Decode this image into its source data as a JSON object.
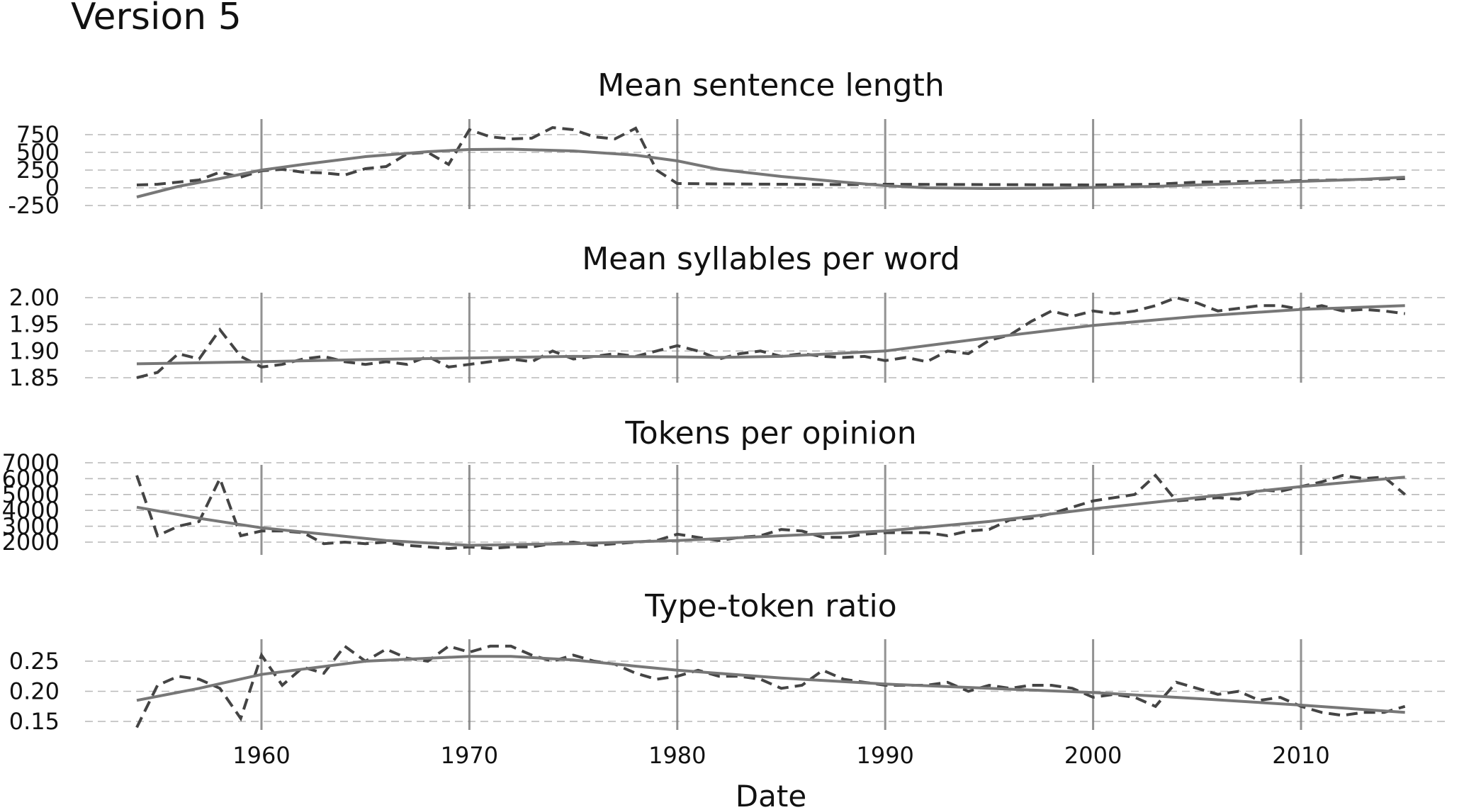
{
  "page": {
    "title": "Version 5"
  },
  "chart_data": {
    "type": "line",
    "xlabel": "Date",
    "xlim": [
      1952.5,
      2017.5
    ],
    "x_ticks": [
      1960,
      1970,
      1980,
      1990,
      2000,
      2010
    ],
    "vertical_lines": [
      1960,
      1970,
      1980,
      1990,
      2000,
      2010
    ],
    "grid": "horizontal dashed",
    "panels": [
      {
        "title": "Mean sentence length",
        "ylim": [
          -290,
          830
        ],
        "y_ticks": [
          -250,
          0,
          250,
          500,
          750
        ],
        "series": [
          {
            "style": "dashed",
            "x": [
              1954,
              1955,
              1956,
              1957,
              1958,
              1959,
              1960,
              1961,
              1962,
              1963,
              1964,
              1965,
              1966,
              1967,
              1968,
              1969,
              1970,
              1971,
              1972,
              1973,
              1974,
              1975,
              1976,
              1977,
              1978,
              1979,
              1980,
              1982,
              1985,
              1988,
              1990,
              1995,
              2000,
              2003,
              2005,
              2010,
              2015
            ],
            "values": [
              40,
              50,
              80,
              110,
              220,
              150,
              240,
              260,
              220,
              210,
              180,
              270,
              300,
              480,
              500,
              330,
              820,
              720,
              690,
              700,
              850,
              820,
              720,
              690,
              840,
              250,
              60,
              55,
              50,
              45,
              50,
              45,
              40,
              50,
              80,
              100,
              130
            ]
          },
          {
            "style": "smooth",
            "x": [
              1954,
              1956,
              1958,
              1960,
              1962,
              1965,
              1968,
              1970,
              1972,
              1975,
              1978,
              1980,
              1982,
              1985,
              1988,
              1990,
              1992,
              1995,
              1998,
              2000,
              2003,
              2005,
              2008,
              2010,
              2013,
              2015
            ],
            "values": [
              -130,
              20,
              130,
              250,
              330,
              440,
              510,
              540,
              545,
              520,
              460,
              380,
              260,
              160,
              80,
              30,
              0,
              -10,
              -5,
              5,
              20,
              40,
              70,
              90,
              120,
              150
            ]
          }
        ]
      },
      {
        "title": "Mean syllables per word",
        "ylim": [
          1.84,
          2.01
        ],
        "y_ticks": [
          1.85,
          1.9,
          1.95,
          2.0
        ],
        "series": [
          {
            "style": "dashed",
            "x": [
              1954,
              1955,
              1956,
              1957,
              1958,
              1959,
              1960,
              1961,
              1962,
              1963,
              1964,
              1965,
              1966,
              1967,
              1968,
              1969,
              1970,
              1971,
              1972,
              1973,
              1974,
              1975,
              1976,
              1977,
              1978,
              1979,
              1980,
              1981,
              1982,
              1983,
              1984,
              1985,
              1986,
              1987,
              1988,
              1989,
              1990,
              1991,
              1992,
              1993,
              1994,
              1995,
              1996,
              1997,
              1998,
              1999,
              2000,
              2001,
              2002,
              2003,
              2004,
              2005,
              2006,
              2007,
              2008,
              2009,
              2010,
              2011,
              2012,
              2013,
              2014,
              2015
            ],
            "values": [
              1.85,
              1.86,
              1.895,
              1.885,
              1.94,
              1.89,
              1.87,
              1.875,
              1.885,
              1.89,
              1.88,
              1.875,
              1.88,
              1.875,
              1.89,
              1.87,
              1.875,
              1.88,
              1.885,
              1.88,
              1.9,
              1.885,
              1.89,
              1.895,
              1.89,
              1.9,
              1.91,
              1.9,
              1.885,
              1.895,
              1.9,
              1.89,
              1.895,
              1.89,
              1.888,
              1.89,
              1.882,
              1.888,
              1.88,
              1.9,
              1.895,
              1.92,
              1.93,
              1.955,
              1.975,
              1.965,
              1.975,
              1.97,
              1.975,
              1.985,
              2.0,
              1.99,
              1.975,
              1.98,
              1.985,
              1.985,
              1.978,
              1.985,
              1.975,
              1.978,
              1.975,
              1.97
            ]
          },
          {
            "style": "smooth",
            "x": [
              1954,
              1960,
              1965,
              1970,
              1975,
              1980,
              1982,
              1985,
              1990,
              1995,
              2000,
              2005,
              2010,
              2015
            ],
            "values": [
              1.876,
              1.88,
              1.884,
              1.887,
              1.89,
              1.889,
              1.888,
              1.89,
              1.9,
              1.925,
              1.948,
              1.965,
              1.978,
              1.985
            ]
          }
        ]
      },
      {
        "title": "Tokens per opinion",
        "ylim": [
          1400,
          7200
        ],
        "y_ticks": [
          2000,
          3000,
          4000,
          5000,
          6000,
          7000
        ],
        "series": [
          {
            "style": "dashed",
            "x": [
              1954,
              1955,
              1956,
              1957,
              1958,
              1959,
              1960,
              1961,
              1962,
              1963,
              1964,
              1965,
              1966,
              1967,
              1968,
              1969,
              1970,
              1971,
              1972,
              1973,
              1974,
              1975,
              1976,
              1977,
              1978,
              1979,
              1980,
              1981,
              1982,
              1983,
              1984,
              1985,
              1986,
              1987,
              1988,
              1989,
              1990,
              1991,
              1992,
              1993,
              1994,
              1995,
              1996,
              1997,
              1998,
              1999,
              2000,
              2001,
              2002,
              2003,
              2004,
              2005,
              2006,
              2007,
              2008,
              2009,
              2010,
              2011,
              2012,
              2013,
              2014,
              2015
            ],
            "values": [
              6200,
              2400,
              3000,
              3300,
              6000,
              2400,
              2700,
              2700,
              2600,
              1900,
              2000,
              1900,
              2000,
              1800,
              1700,
              1600,
              1700,
              1600,
              1700,
              1700,
              1900,
              2000,
              1800,
              1900,
              2000,
              2100,
              2500,
              2300,
              2100,
              2300,
              2400,
              2800,
              2700,
              2300,
              2300,
              2500,
              2600,
              2600,
              2600,
              2400,
              2700,
              2800,
              3400,
              3500,
              3800,
              4200,
              4600,
              4800,
              5000,
              6200,
              4600,
              4700,
              4800,
              4700,
              5300,
              5200,
              5500,
              5800,
              6200,
              6000,
              6100,
              5000
            ]
          },
          {
            "style": "smooth",
            "x": [
              1954,
              1957,
              1960,
              1963,
              1966,
              1970,
              1975,
              1980,
              1985,
              1990,
              1995,
              2000,
              2005,
              2010,
              2015
            ],
            "values": [
              4200,
              3500,
              2900,
              2500,
              2100,
              1800,
              1900,
              2100,
              2400,
              2700,
              3300,
              4100,
              4800,
              5500,
              6100
            ]
          }
        ]
      },
      {
        "title": "Type-token ratio",
        "ylim": [
          0.14,
          0.29
        ],
        "y_ticks": [
          0.15,
          0.2,
          0.25
        ],
        "series": [
          {
            "style": "dashed",
            "x": [
              1954,
              1955,
              1956,
              1957,
              1958,
              1959,
              1960,
              1961,
              1962,
              1963,
              1964,
              1965,
              1966,
              1967,
              1968,
              1969,
              1970,
              1971,
              1972,
              1973,
              1974,
              1975,
              1976,
              1977,
              1978,
              1979,
              1980,
              1981,
              1982,
              1983,
              1984,
              1985,
              1986,
              1987,
              1988,
              1989,
              1990,
              1991,
              1992,
              1993,
              1994,
              1995,
              1996,
              1997,
              1998,
              1999,
              2000,
              2001,
              2002,
              2003,
              2004,
              2005,
              2006,
              2007,
              2008,
              2009,
              2010,
              2011,
              2012,
              2013,
              2014,
              2015
            ],
            "values": [
              0.14,
              0.21,
              0.225,
              0.22,
              0.205,
              0.155,
              0.26,
              0.21,
              0.24,
              0.23,
              0.275,
              0.25,
              0.27,
              0.255,
              0.25,
              0.275,
              0.265,
              0.275,
              0.275,
              0.26,
              0.25,
              0.26,
              0.25,
              0.245,
              0.23,
              0.22,
              0.225,
              0.235,
              0.225,
              0.225,
              0.22,
              0.205,
              0.21,
              0.235,
              0.22,
              0.215,
              0.21,
              0.21,
              0.21,
              0.215,
              0.2,
              0.21,
              0.205,
              0.21,
              0.21,
              0.205,
              0.19,
              0.195,
              0.19,
              0.175,
              0.215,
              0.205,
              0.195,
              0.2,
              0.185,
              0.19,
              0.175,
              0.165,
              0.16,
              0.165,
              0.165,
              0.175
            ]
          },
          {
            "style": "smooth",
            "x": [
              1954,
              1957,
              1960,
              1965,
              1970,
              1972,
              1975,
              1980,
              1985,
              1990,
              1995,
              2000,
              2005,
              2010,
              2015
            ],
            "values": [
              0.185,
              0.205,
              0.228,
              0.25,
              0.258,
              0.258,
              0.252,
              0.235,
              0.222,
              0.212,
              0.205,
              0.198,
              0.188,
              0.177,
              0.165
            ]
          }
        ]
      }
    ]
  }
}
